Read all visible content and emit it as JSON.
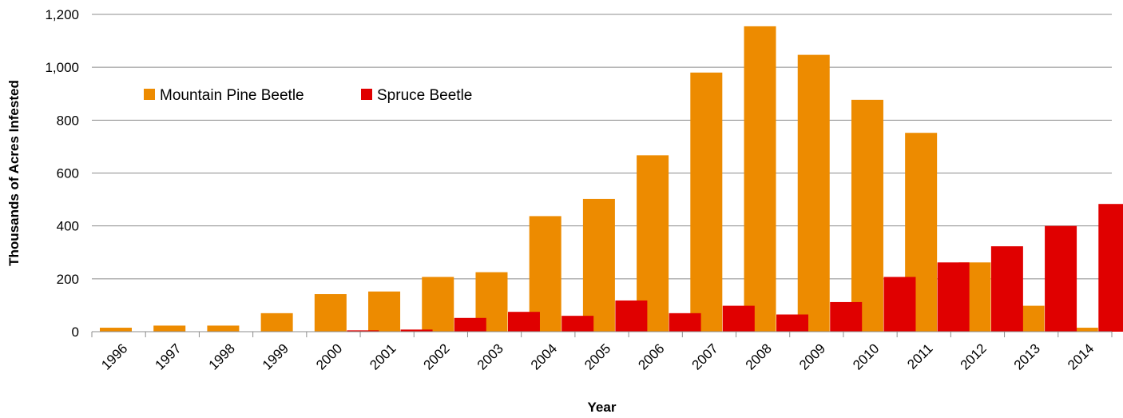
{
  "chart_data": {
    "type": "bar",
    "title": "",
    "xlabel": "Year",
    "ylabel": "Thousands of Acres Infested",
    "ylim": [
      0,
      1200
    ],
    "yticks": [
      0,
      200,
      400,
      600,
      800,
      1000,
      1200
    ],
    "ytick_labels": [
      "0",
      "200",
      "400",
      "600",
      "800",
      "1,000",
      "1,200"
    ],
    "grid": true,
    "legend_position": "top-left",
    "categories": [
      "1996",
      "1997",
      "1998",
      "1999",
      "2000",
      "2001",
      "2002",
      "2003",
      "2004",
      "2005",
      "2006",
      "2007",
      "2008",
      "2009",
      "2010",
      "2011",
      "2012",
      "2013",
      "2014"
    ],
    "series": [
      {
        "name": "Mountain Pine Beetle",
        "color": "#ED8B00",
        "values": [
          15,
          23,
          23,
          70,
          142,
          152,
          207,
          225,
          437,
          502,
          667,
          980,
          1155,
          1047,
          877,
          752,
          262,
          98,
          15
        ]
      },
      {
        "name": "Spruce Beetle",
        "color": "#E00000",
        "values": [
          0,
          0,
          0,
          0,
          5,
          8,
          52,
          75,
          60,
          118,
          70,
          98,
          65,
          112,
          207,
          262,
          323,
          400,
          483
        ]
      }
    ]
  }
}
